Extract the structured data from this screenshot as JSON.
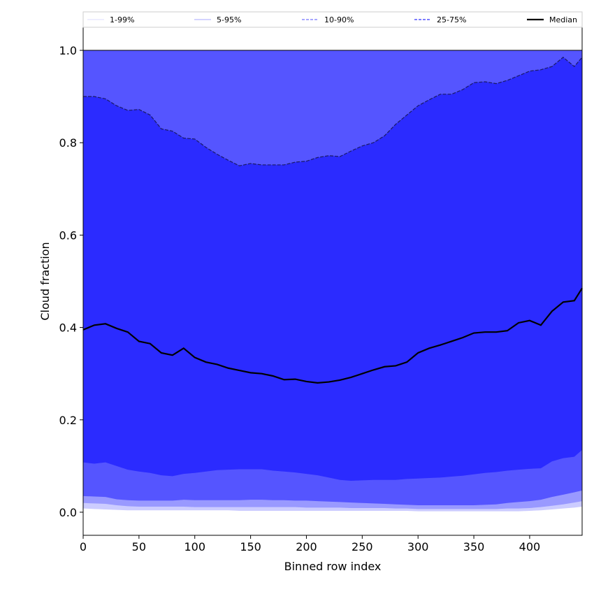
{
  "chart_data": {
    "type": "area",
    "xlabel": "Binned row index",
    "ylabel": "Cloud fraction",
    "xlim": [
      0,
      447
    ],
    "ylim": [
      -0.05,
      1.05
    ],
    "x_ticks": [
      0,
      50,
      100,
      150,
      200,
      250,
      300,
      350,
      400
    ],
    "y_ticks": [
      0.0,
      0.2,
      0.4,
      0.6,
      0.8,
      1.0
    ],
    "grid": false,
    "legend_placement": "top (horizontal strip above plot)",
    "legend": [
      {
        "label": "1-99%",
        "style": "solid-thin",
        "color": "#dcdcff"
      },
      {
        "label": "5-95%",
        "style": "solid-thin",
        "color": "#aaaaff"
      },
      {
        "label": "10-90%",
        "style": "dashed",
        "color": "#8c8cff"
      },
      {
        "label": "25-75%",
        "style": "dashed",
        "color": "#5555ff"
      },
      {
        "label": "Median",
        "style": "solid-thick",
        "color": "#000000"
      }
    ],
    "colors": {
      "band_1_99": "#ccccff",
      "band_5_95": "#9999ff",
      "band_10_90": "#5555ff",
      "band_25_75": "#2b2bff",
      "median": "#000000"
    },
    "x": [
      0,
      10,
      20,
      30,
      40,
      50,
      60,
      70,
      80,
      90,
      100,
      110,
      120,
      130,
      140,
      150,
      160,
      170,
      180,
      190,
      200,
      210,
      220,
      230,
      240,
      250,
      260,
      270,
      280,
      290,
      300,
      310,
      320,
      330,
      340,
      350,
      360,
      370,
      380,
      390,
      400,
      410,
      420,
      430,
      440,
      447
    ],
    "series": [
      {
        "name": "Median",
        "values": [
          0.395,
          0.405,
          0.408,
          0.398,
          0.39,
          0.37,
          0.365,
          0.345,
          0.34,
          0.355,
          0.335,
          0.325,
          0.32,
          0.312,
          0.307,
          0.302,
          0.3,
          0.295,
          0.287,
          0.288,
          0.283,
          0.28,
          0.282,
          0.286,
          0.292,
          0.3,
          0.308,
          0.315,
          0.317,
          0.325,
          0.345,
          0.355,
          0.362,
          0.37,
          0.378,
          0.388,
          0.39,
          0.39,
          0.393,
          0.41,
          0.415,
          0.405,
          0.435,
          0.455,
          0.458,
          0.485
        ]
      },
      {
        "name": "1-99%",
        "lower": [
          0.008,
          0.007,
          0.006,
          0.005,
          0.004,
          0.004,
          0.004,
          0.004,
          0.004,
          0.004,
          0.004,
          0.004,
          0.004,
          0.004,
          0.003,
          0.003,
          0.003,
          0.003,
          0.003,
          0.003,
          0.003,
          0.003,
          0.003,
          0.003,
          0.003,
          0.003,
          0.003,
          0.003,
          0.003,
          0.003,
          0.002,
          0.002,
          0.002,
          0.002,
          0.002,
          0.002,
          0.002,
          0.002,
          0.002,
          0.002,
          0.003,
          0.004,
          0.006,
          0.008,
          0.01,
          0.012
        ],
        "upper": [
          1.0,
          1.0,
          1.0,
          1.0,
          1.0,
          1.0,
          1.0,
          1.0,
          1.0,
          1.0,
          1.0,
          1.0,
          1.0,
          1.0,
          1.0,
          1.0,
          1.0,
          1.0,
          1.0,
          1.0,
          1.0,
          1.0,
          1.0,
          1.0,
          1.0,
          1.0,
          1.0,
          1.0,
          1.0,
          1.0,
          1.0,
          1.0,
          1.0,
          1.0,
          1.0,
          1.0,
          1.0,
          1.0,
          1.0,
          1.0,
          1.0,
          1.0,
          1.0,
          1.0,
          1.0,
          1.0
        ]
      },
      {
        "name": "5-95%",
        "lower": [
          0.02,
          0.019,
          0.018,
          0.015,
          0.013,
          0.012,
          0.012,
          0.012,
          0.012,
          0.012,
          0.011,
          0.011,
          0.011,
          0.011,
          0.011,
          0.011,
          0.011,
          0.011,
          0.011,
          0.011,
          0.01,
          0.01,
          0.01,
          0.01,
          0.009,
          0.009,
          0.009,
          0.009,
          0.008,
          0.008,
          0.007,
          0.007,
          0.007,
          0.007,
          0.007,
          0.007,
          0.007,
          0.007,
          0.008,
          0.008,
          0.009,
          0.011,
          0.014,
          0.017,
          0.021,
          0.024
        ],
        "upper": [
          1.0,
          1.0,
          1.0,
          1.0,
          1.0,
          1.0,
          1.0,
          1.0,
          1.0,
          1.0,
          1.0,
          1.0,
          1.0,
          1.0,
          1.0,
          1.0,
          1.0,
          1.0,
          1.0,
          1.0,
          1.0,
          1.0,
          1.0,
          1.0,
          1.0,
          1.0,
          1.0,
          1.0,
          1.0,
          1.0,
          1.0,
          1.0,
          1.0,
          1.0,
          1.0,
          1.0,
          1.0,
          1.0,
          1.0,
          1.0,
          1.0,
          1.0,
          1.0,
          1.0,
          1.0,
          1.0
        ]
      },
      {
        "name": "10-90%",
        "lower": [
          0.035,
          0.034,
          0.033,
          0.028,
          0.026,
          0.025,
          0.025,
          0.025,
          0.025,
          0.027,
          0.026,
          0.026,
          0.026,
          0.026,
          0.026,
          0.027,
          0.027,
          0.026,
          0.026,
          0.025,
          0.025,
          0.024,
          0.023,
          0.022,
          0.021,
          0.02,
          0.019,
          0.018,
          0.017,
          0.016,
          0.015,
          0.015,
          0.015,
          0.015,
          0.015,
          0.015,
          0.016,
          0.017,
          0.02,
          0.022,
          0.024,
          0.027,
          0.033,
          0.038,
          0.043,
          0.047
        ],
        "upper": [
          1.0,
          1.0,
          1.0,
          1.0,
          1.0,
          1.0,
          1.0,
          1.0,
          1.0,
          1.0,
          1.0,
          1.0,
          1.0,
          1.0,
          1.0,
          1.0,
          1.0,
          1.0,
          1.0,
          1.0,
          1.0,
          1.0,
          1.0,
          1.0,
          1.0,
          1.0,
          1.0,
          1.0,
          1.0,
          1.0,
          1.0,
          1.0,
          1.0,
          1.0,
          1.0,
          1.0,
          1.0,
          1.0,
          1.0,
          1.0,
          1.0,
          1.0,
          1.0,
          1.0,
          1.0,
          1.0
        ]
      },
      {
        "name": "25-75%",
        "lower": [
          0.108,
          0.105,
          0.108,
          0.1,
          0.092,
          0.088,
          0.085,
          0.08,
          0.078,
          0.083,
          0.085,
          0.088,
          0.091,
          0.092,
          0.093,
          0.093,
          0.093,
          0.09,
          0.088,
          0.086,
          0.083,
          0.08,
          0.075,
          0.07,
          0.068,
          0.069,
          0.07,
          0.07,
          0.07,
          0.072,
          0.073,
          0.074,
          0.075,
          0.077,
          0.079,
          0.082,
          0.085,
          0.087,
          0.09,
          0.092,
          0.094,
          0.095,
          0.11,
          0.117,
          0.12,
          0.135
        ],
        "upper": [
          0.9,
          0.9,
          0.895,
          0.88,
          0.87,
          0.872,
          0.86,
          0.83,
          0.825,
          0.81,
          0.808,
          0.79,
          0.775,
          0.762,
          0.75,
          0.755,
          0.752,
          0.752,
          0.752,
          0.758,
          0.76,
          0.768,
          0.772,
          0.77,
          0.782,
          0.793,
          0.8,
          0.815,
          0.84,
          0.86,
          0.88,
          0.893,
          0.905,
          0.905,
          0.915,
          0.93,
          0.932,
          0.928,
          0.935,
          0.945,
          0.955,
          0.958,
          0.965,
          0.985,
          0.965,
          0.985
        ]
      }
    ]
  }
}
